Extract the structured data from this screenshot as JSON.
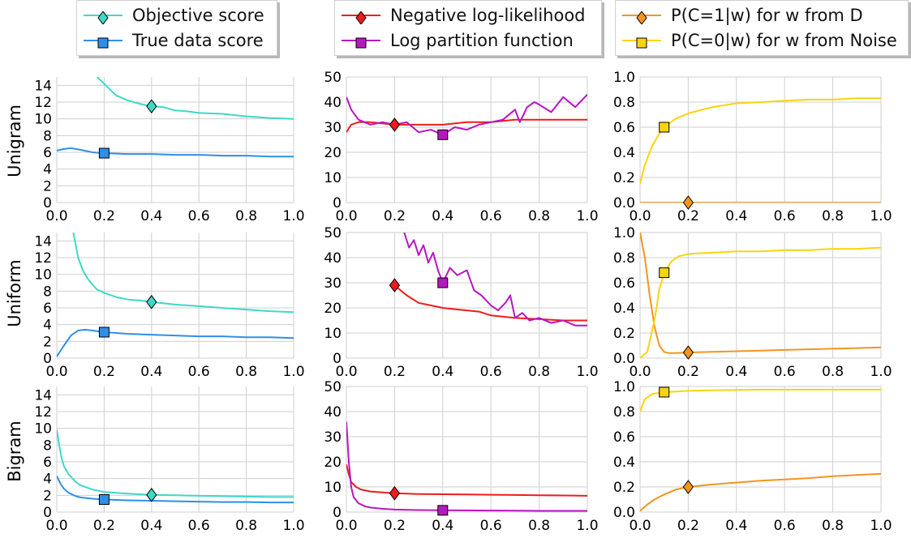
{
  "legends": [
    {
      "items": [
        {
          "label": "Objective score",
          "color": "#3ed9c6",
          "marker": "diamond"
        },
        {
          "label": "True data score",
          "color": "#2f8fe8",
          "marker": "square"
        }
      ]
    },
    {
      "items": [
        {
          "label": "Negative log-likelihood",
          "color": "#ee1c1c",
          "marker": "diamond"
        },
        {
          "label": "Log partition function",
          "color": "#b816c2",
          "marker": "square"
        }
      ]
    },
    {
      "items": [
        {
          "label": "P(C=1|w) for w from D",
          "color": "#f5941e",
          "marker": "diamond"
        },
        {
          "label": "P(C=0|w) for w from Noise",
          "color": "#fbd40e",
          "marker": "square"
        }
      ]
    }
  ],
  "row_labels": [
    "Unigram",
    "Uniform",
    "Bigram"
  ],
  "chart_data": [
    {
      "type": "line",
      "row": "Unigram",
      "col": 1,
      "xlim": [
        0,
        1
      ],
      "ylim": [
        0,
        15
      ],
      "xticks": [
        "0.0",
        "0.2",
        "0.4",
        "0.6",
        "0.8",
        "1.0"
      ],
      "yticks": [
        "0",
        "2",
        "4",
        "6",
        "8",
        "10",
        "12",
        "14"
      ],
      "grid": true,
      "series": [
        {
          "name": "Objective score",
          "color": "#3ed9c6",
          "marker": "diamond",
          "marker_x": 0.4,
          "x": [
            0.17,
            0.2,
            0.25,
            0.3,
            0.35,
            0.4,
            0.45,
            0.5,
            0.55,
            0.6,
            0.7,
            0.8,
            0.9,
            1.0
          ],
          "y": [
            15,
            14.2,
            12.8,
            12.2,
            11.8,
            11.5,
            11.4,
            11.0,
            10.9,
            10.7,
            10.6,
            10.3,
            10.1,
            10.0
          ]
        },
        {
          "name": "True data score",
          "color": "#2f8fe8",
          "marker": "square",
          "marker_x": 0.2,
          "x": [
            0.0,
            0.03,
            0.06,
            0.1,
            0.15,
            0.2,
            0.3,
            0.4,
            0.5,
            0.6,
            0.7,
            0.8,
            0.9,
            1.0
          ],
          "y": [
            6.2,
            6.4,
            6.5,
            6.3,
            6.0,
            5.9,
            5.8,
            5.8,
            5.7,
            5.7,
            5.6,
            5.6,
            5.5,
            5.5
          ]
        }
      ]
    },
    {
      "type": "line",
      "row": "Unigram",
      "col": 2,
      "xlim": [
        0,
        1
      ],
      "ylim": [
        0,
        50
      ],
      "xticks": [
        "0.0",
        "0.2",
        "0.4",
        "0.6",
        "0.8",
        "1.0"
      ],
      "yticks": [
        "0",
        "10",
        "20",
        "30",
        "40",
        "50"
      ],
      "grid": true,
      "series": [
        {
          "name": "Negative log-likelihood",
          "color": "#ee1c1c",
          "marker": "diamond",
          "marker_x": 0.2,
          "x": [
            0.0,
            0.02,
            0.05,
            0.1,
            0.2,
            0.3,
            0.4,
            0.5,
            0.6,
            0.7,
            0.8,
            0.9,
            1.0
          ],
          "y": [
            28,
            31,
            32,
            32,
            31,
            31,
            31,
            32,
            32,
            33,
            33,
            33,
            33
          ]
        },
        {
          "name": "Log partition function",
          "color": "#b816c2",
          "marker": "square",
          "marker_x": 0.4,
          "x": [
            0.0,
            0.02,
            0.05,
            0.1,
            0.15,
            0.2,
            0.25,
            0.3,
            0.35,
            0.4,
            0.45,
            0.5,
            0.55,
            0.6,
            0.65,
            0.7,
            0.72,
            0.75,
            0.78,
            0.8,
            0.85,
            0.9,
            0.95,
            1.0
          ],
          "y": [
            42,
            37,
            33,
            31,
            32,
            31,
            32,
            28,
            29,
            27,
            30,
            29,
            31,
            32,
            33,
            37,
            32,
            38,
            40,
            39,
            36,
            42,
            38,
            43
          ]
        }
      ]
    },
    {
      "type": "line",
      "row": "Unigram",
      "col": 3,
      "xlim": [
        0,
        1
      ],
      "ylim": [
        0,
        1
      ],
      "xticks": [
        "0.0",
        "0.2",
        "0.4",
        "0.6",
        "0.8",
        "1.0"
      ],
      "yticks": [
        "0.0",
        "0.2",
        "0.4",
        "0.6",
        "0.8",
        "1.0"
      ],
      "grid": true,
      "series": [
        {
          "name": "P(C=1|w) for w from D",
          "color": "#f5941e",
          "marker": "diamond",
          "marker_x": 0.2,
          "x": [
            0.0,
            0.2,
            0.4,
            0.6,
            0.8,
            1.0
          ],
          "y": [
            0.0,
            0.0,
            0.0,
            0.0,
            0.0,
            0.0
          ]
        },
        {
          "name": "P(C=0|w) for w from Noise",
          "color": "#fbd40e",
          "marker": "square",
          "marker_x": 0.1,
          "x": [
            0.0,
            0.02,
            0.05,
            0.08,
            0.1,
            0.15,
            0.2,
            0.3,
            0.4,
            0.5,
            0.6,
            0.7,
            0.8,
            0.9,
            1.0
          ],
          "y": [
            0.15,
            0.3,
            0.45,
            0.55,
            0.6,
            0.67,
            0.71,
            0.76,
            0.79,
            0.8,
            0.81,
            0.82,
            0.82,
            0.83,
            0.83
          ]
        }
      ]
    },
    {
      "type": "line",
      "row": "Uniform",
      "col": 1,
      "xlim": [
        0,
        1
      ],
      "ylim": [
        0,
        15
      ],
      "xticks": [
        "0.0",
        "0.2",
        "0.4",
        "0.6",
        "0.8",
        "1.0"
      ],
      "yticks": [
        "0",
        "2",
        "4",
        "6",
        "8",
        "10",
        "12",
        "14"
      ],
      "grid": true,
      "series": [
        {
          "name": "Objective score",
          "color": "#3ed9c6",
          "marker": "diamond",
          "marker_x": 0.4,
          "x": [
            0.07,
            0.09,
            0.11,
            0.13,
            0.15,
            0.17,
            0.2,
            0.25,
            0.3,
            0.35,
            0.4,
            0.5,
            0.6,
            0.7,
            0.8,
            0.9,
            1.0
          ],
          "y": [
            15,
            12,
            10.5,
            9.5,
            8.8,
            8.2,
            7.8,
            7.3,
            7.0,
            6.9,
            6.7,
            6.4,
            6.2,
            6.0,
            5.8,
            5.6,
            5.5
          ]
        },
        {
          "name": "True data score",
          "color": "#2f8fe8",
          "marker": "square",
          "marker_x": 0.2,
          "x": [
            0.0,
            0.03,
            0.06,
            0.09,
            0.12,
            0.15,
            0.2,
            0.3,
            0.4,
            0.5,
            0.6,
            0.7,
            0.8,
            0.9,
            1.0
          ],
          "y": [
            0.2,
            1.5,
            2.7,
            3.3,
            3.4,
            3.3,
            3.1,
            2.9,
            2.8,
            2.7,
            2.6,
            2.6,
            2.5,
            2.5,
            2.4
          ]
        }
      ]
    },
    {
      "type": "line",
      "row": "Uniform",
      "col": 2,
      "xlim": [
        0,
        1
      ],
      "ylim": [
        0,
        50
      ],
      "xticks": [
        "0.0",
        "0.2",
        "0.4",
        "0.6",
        "0.8",
        "1.0"
      ],
      "yticks": [
        "0",
        "10",
        "20",
        "30",
        "40",
        "50"
      ],
      "grid": true,
      "series": [
        {
          "name": "Negative log-likelihood",
          "color": "#ee1c1c",
          "marker": "diamond",
          "marker_x": 0.2,
          "x": [
            0.19,
            0.2,
            0.25,
            0.3,
            0.35,
            0.4,
            0.45,
            0.5,
            0.55,
            0.6,
            0.7,
            0.8,
            0.9,
            1.0
          ],
          "y": [
            30,
            29,
            25,
            22,
            21,
            20,
            19.5,
            19,
            18.5,
            17,
            16,
            15.5,
            15,
            15
          ]
        },
        {
          "name": "Log partition function",
          "color": "#b816c2",
          "marker": "square",
          "marker_x": 0.4,
          "x": [
            0.24,
            0.26,
            0.28,
            0.3,
            0.32,
            0.34,
            0.36,
            0.38,
            0.4,
            0.43,
            0.46,
            0.5,
            0.53,
            0.56,
            0.6,
            0.63,
            0.66,
            0.68,
            0.7,
            0.73,
            0.76,
            0.8,
            0.85,
            0.9,
            0.95,
            1.0
          ],
          "y": [
            50,
            44,
            47,
            41,
            45,
            38,
            42,
            35,
            30,
            36,
            33,
            35,
            27,
            25,
            21,
            19,
            22,
            25,
            16,
            18,
            15,
            16,
            14,
            15,
            13,
            13
          ]
        }
      ]
    },
    {
      "type": "line",
      "row": "Uniform",
      "col": 3,
      "xlim": [
        0,
        1
      ],
      "ylim": [
        0,
        1
      ],
      "xticks": [
        "0.0",
        "0.2",
        "0.4",
        "0.6",
        "0.8",
        "1.0"
      ],
      "yticks": [
        "0.0",
        "0.2",
        "0.4",
        "0.6",
        "0.8",
        "1.0"
      ],
      "grid": true,
      "series": [
        {
          "name": "P(C=1|w) for w from D",
          "color": "#f5941e",
          "marker": "diamond",
          "marker_x": 0.2,
          "x": [
            0.0,
            0.02,
            0.04,
            0.06,
            0.08,
            0.1,
            0.12,
            0.15,
            0.2,
            0.3,
            0.4,
            0.5,
            0.6,
            0.7,
            0.8,
            0.9,
            1.0
          ],
          "y": [
            1.0,
            0.8,
            0.5,
            0.25,
            0.1,
            0.05,
            0.04,
            0.04,
            0.045,
            0.05,
            0.055,
            0.06,
            0.065,
            0.07,
            0.075,
            0.08,
            0.085
          ]
        },
        {
          "name": "P(C=0|w) for w from Noise",
          "color": "#fbd40e",
          "marker": "square",
          "marker_x": 0.1,
          "x": [
            0.0,
            0.03,
            0.06,
            0.08,
            0.1,
            0.13,
            0.16,
            0.2,
            0.3,
            0.4,
            0.5,
            0.6,
            0.7,
            0.8,
            0.9,
            1.0
          ],
          "y": [
            0.0,
            0.05,
            0.3,
            0.55,
            0.68,
            0.77,
            0.81,
            0.83,
            0.84,
            0.85,
            0.85,
            0.86,
            0.86,
            0.87,
            0.87,
            0.88
          ]
        }
      ]
    },
    {
      "type": "line",
      "row": "Bigram",
      "col": 1,
      "xlim": [
        0,
        1
      ],
      "ylim": [
        0,
        15
      ],
      "xticks": [
        "0.0",
        "0.2",
        "0.4",
        "0.6",
        "0.8",
        "1.0"
      ],
      "yticks": [
        "0",
        "2",
        "4",
        "6",
        "8",
        "10",
        "12",
        "14"
      ],
      "grid": true,
      "series": [
        {
          "name": "Objective score",
          "color": "#3ed9c6",
          "marker": "diamond",
          "marker_x": 0.4,
          "x": [
            0.0,
            0.01,
            0.02,
            0.03,
            0.05,
            0.08,
            0.1,
            0.15,
            0.2,
            0.3,
            0.4,
            0.5,
            0.6,
            0.7,
            0.8,
            0.9,
            1.0
          ],
          "y": [
            9.8,
            8.0,
            6.5,
            5.5,
            4.5,
            3.6,
            3.2,
            2.7,
            2.4,
            2.2,
            2.05,
            2.0,
            1.95,
            1.9,
            1.85,
            1.8,
            1.8
          ]
        },
        {
          "name": "True data score",
          "color": "#2f8fe8",
          "marker": "square",
          "marker_x": 0.2,
          "x": [
            0.0,
            0.01,
            0.02,
            0.03,
            0.05,
            0.08,
            0.1,
            0.15,
            0.2,
            0.3,
            0.4,
            0.5,
            0.6,
            0.7,
            0.8,
            0.9,
            1.0
          ],
          "y": [
            4.3,
            3.7,
            3.2,
            2.8,
            2.3,
            1.9,
            1.75,
            1.6,
            1.5,
            1.4,
            1.35,
            1.3,
            1.25,
            1.2,
            1.2,
            1.15,
            1.15
          ]
        }
      ]
    },
    {
      "type": "line",
      "row": "Bigram",
      "col": 2,
      "xlim": [
        0,
        1
      ],
      "ylim": [
        0,
        50
      ],
      "xticks": [
        "0.0",
        "0.2",
        "0.4",
        "0.6",
        "0.8",
        "1.0"
      ],
      "yticks": [
        "0",
        "10",
        "20",
        "30",
        "40",
        "50"
      ],
      "grid": true,
      "series": [
        {
          "name": "Negative log-likelihood",
          "color": "#ee1c1c",
          "marker": "diamond",
          "marker_x": 0.2,
          "x": [
            0.0,
            0.01,
            0.02,
            0.04,
            0.06,
            0.1,
            0.15,
            0.2,
            0.3,
            0.4,
            0.5,
            0.6,
            0.7,
            0.8,
            0.9,
            1.0
          ],
          "y": [
            19,
            15,
            12,
            10,
            9,
            8.2,
            7.8,
            7.5,
            7.2,
            7.1,
            7.0,
            6.9,
            6.8,
            6.7,
            6.6,
            6.5
          ]
        },
        {
          "name": "Log partition function",
          "color": "#b816c2",
          "marker": "square",
          "marker_x": 0.4,
          "x": [
            0.0,
            0.01,
            0.02,
            0.03,
            0.05,
            0.08,
            0.1,
            0.15,
            0.2,
            0.3,
            0.4,
            0.6,
            0.8,
            1.0
          ],
          "y": [
            36,
            20,
            10,
            6,
            3.5,
            2.2,
            1.8,
            1.3,
            1.0,
            0.8,
            0.7,
            0.6,
            0.5,
            0.5
          ]
        }
      ]
    },
    {
      "type": "line",
      "row": "Bigram",
      "col": 3,
      "xlim": [
        0,
        1
      ],
      "ylim": [
        0,
        1
      ],
      "xticks": [
        "0.0",
        "0.2",
        "0.4",
        "0.6",
        "0.8",
        "1.0"
      ],
      "yticks": [
        "0.0",
        "0.2",
        "0.4",
        "0.6",
        "0.8",
        "1.0"
      ],
      "grid": true,
      "series": [
        {
          "name": "P(C=1|w) for w from D",
          "color": "#f5941e",
          "marker": "diamond",
          "marker_x": 0.2,
          "x": [
            0.0,
            0.03,
            0.06,
            0.1,
            0.15,
            0.2,
            0.3,
            0.4,
            0.5,
            0.6,
            0.7,
            0.8,
            0.9,
            1.0
          ],
          "y": [
            0.01,
            0.06,
            0.1,
            0.14,
            0.18,
            0.2,
            0.22,
            0.235,
            0.25,
            0.26,
            0.27,
            0.285,
            0.295,
            0.305
          ]
        },
        {
          "name": "P(C=0|w) for w from Noise",
          "color": "#fbd40e",
          "marker": "square",
          "marker_x": 0.1,
          "x": [
            0.0,
            0.02,
            0.05,
            0.1,
            0.15,
            0.2,
            0.3,
            0.5,
            0.7,
            0.9,
            1.0
          ],
          "y": [
            0.8,
            0.9,
            0.94,
            0.955,
            0.96,
            0.965,
            0.97,
            0.975,
            0.975,
            0.975,
            0.975
          ]
        }
      ]
    }
  ]
}
